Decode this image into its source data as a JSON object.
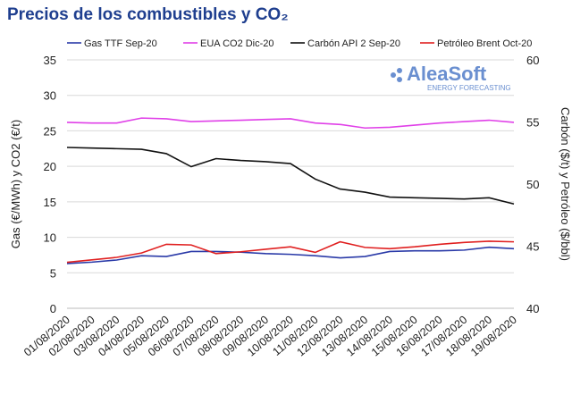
{
  "chart_data": {
    "type": "line",
    "title": "Precios de los combustibles y CO₂",
    "y_label": "Gas (€/MWh) y CO2 (€/t)",
    "y2_label": "Carbón ($/t) y Petróleo ($/bbl)",
    "logo": "AleaSoft",
    "logo_subtitle": "ENERGY FORECASTING",
    "categories": [
      "01/08/2020",
      "02/08/2020",
      "03/08/2020",
      "04/08/2020",
      "05/08/2020",
      "06/08/2020",
      "07/08/2020",
      "08/08/2020",
      "09/08/2020",
      "10/08/2020",
      "11/08/2020",
      "12/08/2020",
      "13/08/2020",
      "14/08/2020",
      "15/08/2020",
      "16/08/2020",
      "17/08/2020",
      "18/08/2020",
      "19/08/2020"
    ],
    "ylim": [
      0,
      35
    ],
    "yticks": [
      0,
      5,
      10,
      15,
      20,
      25,
      30,
      35
    ],
    "y2lim": [
      40,
      60
    ],
    "y2ticks": [
      40,
      45,
      50,
      55,
      60
    ],
    "series": [
      {
        "name": "Gas TTF Sep-20",
        "color": "#2a3aa8",
        "values": [
          6.3,
          6.5,
          6.8,
          7.4,
          7.3,
          8.0,
          8.0,
          7.9,
          7.7,
          7.6,
          7.4,
          7.1,
          7.3,
          8.0,
          8.1,
          8.1,
          8.2,
          8.6,
          8.4
        ]
      },
      {
        "name": "EUA CO2 Dic-20",
        "color": "#e040e8",
        "values": [
          26.2,
          26.1,
          26.1,
          26.8,
          26.7,
          26.3,
          26.4,
          26.5,
          26.6,
          26.7,
          26.1,
          25.9,
          25.4,
          25.5,
          25.8,
          26.1,
          26.3,
          26.5,
          26.2
        ]
      },
      {
        "name": "Carbón API 2 Sep-20",
        "color": "#111111",
        "axis": "y2",
        "values": [
          52.95,
          52.9,
          52.85,
          52.8,
          52.45,
          51.4,
          52.05,
          51.9,
          51.8,
          51.65,
          50.4,
          49.6,
          49.35,
          48.95,
          48.9,
          48.85,
          48.8,
          48.9,
          48.4
        ]
      },
      {
        "name": "Petróleo Brent Oct-20",
        "color": "#e02020",
        "axis": "y2",
        "values": [
          43.7,
          43.9,
          44.1,
          44.45,
          45.15,
          45.1,
          44.4,
          44.55,
          44.75,
          44.95,
          44.5,
          45.35,
          44.9,
          44.8,
          44.95,
          45.15,
          45.3,
          45.4,
          45.35
        ]
      }
    ]
  }
}
